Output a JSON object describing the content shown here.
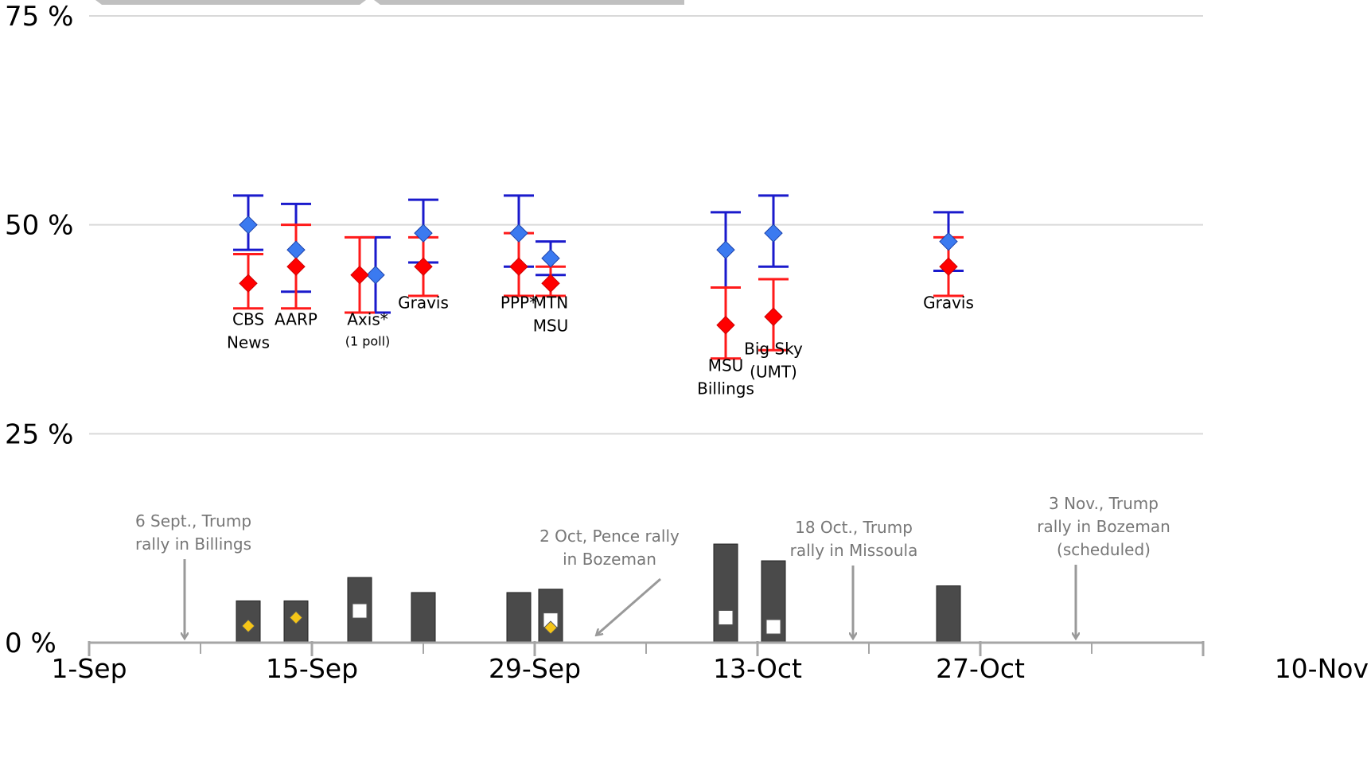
{
  "chart_data": {
    "type": "scatter",
    "title": "",
    "xlabel": "",
    "ylabel": "",
    "x_domain": [
      "2016-09-01",
      "2016-11-10"
    ],
    "ylim": [
      0,
      75
    ],
    "y_ticks": [
      {
        "value": 0,
        "label": "0 %"
      },
      {
        "value": 25,
        "label": "25 %"
      },
      {
        "value": 50,
        "label": "50 %"
      },
      {
        "value": 75,
        "label": "75 %"
      }
    ],
    "x_ticks_labeled": [
      {
        "date": "2016-09-01",
        "label": "1-Sep"
      },
      {
        "date": "2016-09-15",
        "label": "15-Sep"
      },
      {
        "date": "2016-09-29",
        "label": "29-Sep"
      },
      {
        "date": "2016-10-13",
        "label": "13-Oct"
      },
      {
        "date": "2016-10-27",
        "label": "27-Oct"
      },
      {
        "date": "2016-11-10",
        "label": "10-Nov"
      }
    ],
    "x_ticks_minor": [
      "2016-09-08",
      "2016-09-22",
      "2016-10-06",
      "2016-10-20",
      "2016-11-03"
    ],
    "grid": true,
    "colors": {
      "blue_series": "#1a1acc",
      "blue_marker": "#3b7af0",
      "red_series": "#ff1a1a",
      "red_marker": "#ff0000",
      "bar": "#4a4a4a",
      "yellow_marker": "#f5c518",
      "white_marker": "#ffffff",
      "annotation": "#999999",
      "grid": "#d9d9d9",
      "axis": "#a6a6a6"
    },
    "series": [
      {
        "color_key": "blue",
        "points": [
          {
            "date": "2016-09-11",
            "value": 50,
            "low": 47,
            "high": 53.5
          },
          {
            "date": "2016-09-14",
            "value": 47,
            "low": 42,
            "high": 52.5
          },
          {
            "date": "2016-09-19",
            "value": 44,
            "low": 39.5,
            "high": 48.5
          },
          {
            "date": "2016-09-22",
            "value": 49,
            "low": 45.5,
            "high": 53
          },
          {
            "date": "2016-09-28",
            "value": 49,
            "low": 45,
            "high": 53.5
          },
          {
            "date": "2016-09-30",
            "value": 46,
            "low": 44,
            "high": 48
          },
          {
            "date": "2016-10-11",
            "value": 47,
            "low": 42.5,
            "high": 51.5
          },
          {
            "date": "2016-10-14",
            "value": 49,
            "low": 45,
            "high": 53.5
          },
          {
            "date": "2016-10-25",
            "value": 48,
            "low": 44.5,
            "high": 51.5
          }
        ]
      },
      {
        "color_key": "red",
        "points": [
          {
            "date": "2016-09-11",
            "value": 43,
            "low": 40,
            "high": 46.5
          },
          {
            "date": "2016-09-14",
            "value": 45,
            "low": 40,
            "high": 50
          },
          {
            "date": "2016-09-18",
            "value": 44,
            "low": 39.5,
            "high": 48.5
          },
          {
            "date": "2016-09-22",
            "value": 45,
            "low": 41.5,
            "high": 48.5
          },
          {
            "date": "2016-09-28",
            "value": 45,
            "low": 41.5,
            "high": 49
          },
          {
            "date": "2016-09-30",
            "value": 43,
            "low": 41.5,
            "high": 45
          },
          {
            "date": "2016-10-11",
            "value": 38,
            "low": 34,
            "high": 42.5
          },
          {
            "date": "2016-10-14",
            "value": 39,
            "low": 35,
            "high": 43.5
          },
          {
            "date": "2016-10-25",
            "value": 45,
            "low": 41.5,
            "high": 48.5
          }
        ]
      }
    ],
    "poll_labels": [
      {
        "date": "2016-09-11",
        "value": 38,
        "lines": [
          "CBS",
          "News"
        ]
      },
      {
        "date": "2016-09-14",
        "value": 38,
        "lines": [
          "AARP"
        ]
      },
      {
        "date": "2016-09-18.5",
        "value": 38,
        "lines": [
          "Axis*"
        ],
        "subtitle": "(1 poll)"
      },
      {
        "date": "2016-09-22",
        "value": 40,
        "lines": [
          "Gravis"
        ]
      },
      {
        "date": "2016-09-28",
        "value": 40,
        "lines": [
          "PPP*"
        ]
      },
      {
        "date": "2016-09-30",
        "value": 40,
        "lines": [
          "MTN",
          "MSU"
        ]
      },
      {
        "date": "2016-10-11",
        "value": 32.5,
        "lines": [
          "MSU",
          "Billings"
        ]
      },
      {
        "date": "2016-10-14",
        "value": 34.5,
        "lines": [
          "Big Sky",
          "(UMT)"
        ]
      },
      {
        "date": "2016-10-25",
        "value": 40,
        "lines": [
          "Gravis"
        ]
      }
    ],
    "bars": [
      {
        "date": "2016-09-11",
        "value": 5.0,
        "marker": "yellow",
        "marker_value": 2.0
      },
      {
        "date": "2016-09-14",
        "value": 5.0,
        "marker": "yellow",
        "marker_value": 3.0
      },
      {
        "date": "2016-09-18",
        "value": 7.8,
        "marker": "white",
        "marker_value": 3.8
      },
      {
        "date": "2016-09-22",
        "value": 6.0
      },
      {
        "date": "2016-09-28",
        "value": 6.0
      },
      {
        "date": "2016-09-30",
        "value": 6.4,
        "marker": "white",
        "marker_value": 2.7,
        "marker2": "yellow",
        "marker2_value": 1.8
      },
      {
        "date": "2016-10-11",
        "value": 11.8,
        "marker": "white",
        "marker_value": 3.0
      },
      {
        "date": "2016-10-14",
        "value": 9.8,
        "marker": "white",
        "marker_value": 1.9
      },
      {
        "date": "2016-10-25",
        "value": 6.8
      }
    ],
    "annotations": [
      {
        "lines": [
          "6 Sept., Trump",
          "rally in  Billings"
        ],
        "arrow_to_date": "2016-09-07",
        "direction": "down"
      },
      {
        "lines": [
          "2 Oct, Pence rally",
          "in Bozeman"
        ],
        "arrow_to_date": "2016-10-02",
        "direction": "down-left"
      },
      {
        "lines": [
          "18 Oct., Trump",
          "rally in  Missoula"
        ],
        "arrow_to_date": "2016-10-19",
        "direction": "down"
      },
      {
        "lines": [
          "3 Nov., Trump",
          "rally in  Bozeman",
          "(scheduled)"
        ],
        "arrow_to_date": "2016-11-02",
        "direction": "down"
      }
    ]
  }
}
